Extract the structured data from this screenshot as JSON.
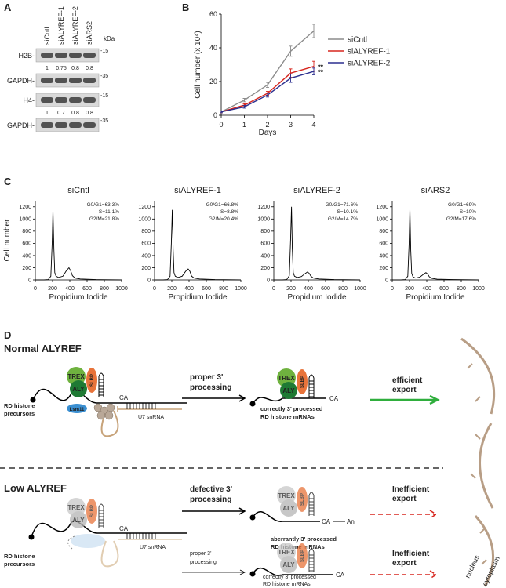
{
  "panel_a": {
    "label": "A",
    "lanes": [
      "siCntl",
      "siALYREF-1",
      "siALYREF-2",
      "siARS2"
    ],
    "kda": "kDa",
    "rows": [
      {
        "name": "H2B-",
        "marker": "-15",
        "quant": [
          1,
          0.75,
          0.8,
          0.8
        ]
      },
      {
        "name": "GAPDH-",
        "marker": "-35"
      },
      {
        "name": "H4-",
        "marker": "-15",
        "quant": [
          1,
          0.7,
          0.8,
          0.8
        ]
      },
      {
        "name": "GAPDH-",
        "marker": "-35"
      }
    ]
  },
  "chart_data": [
    {
      "type": "line",
      "panel": "B",
      "ylabel": "Cell number (x 10⁴)",
      "xlabel": "Days",
      "x": [
        0,
        1,
        2,
        3,
        4
      ],
      "xlim": [
        0,
        4
      ],
      "xticks": [
        0,
        1,
        2,
        3,
        4
      ],
      "ylim": [
        0,
        60
      ],
      "yticks": [
        0,
        20,
        40,
        60
      ],
      "series": [
        {
          "name": "siCntl",
          "color": "#8c8c8c",
          "values": [
            2,
            9,
            18,
            38,
            50
          ],
          "errors": [
            0.5,
            1,
            1.5,
            3,
            4
          ]
        },
        {
          "name": "siALYREF-1",
          "color": "#d7261e",
          "values": [
            2,
            6,
            13,
            25,
            29
          ],
          "errors": [
            0.5,
            0.8,
            1.2,
            2.5,
            3
          ]
        },
        {
          "name": "siALYREF-2",
          "color": "#2b2f8f",
          "values": [
            2,
            5,
            12,
            22,
            26
          ],
          "errors": [
            0.5,
            0.8,
            1.2,
            2.5,
            2
          ]
        }
      ],
      "annotations": [
        "**",
        "**"
      ]
    },
    {
      "type": "line",
      "panel": "C",
      "title": "siCntl",
      "ylabel": "Cell number",
      "xlabel": "Propidium Iodide",
      "color": "#000",
      "xlim": [
        0,
        1000
      ],
      "xticks": [
        0,
        200,
        400,
        600,
        800,
        1000
      ],
      "ylim": [
        0,
        1300
      ],
      "yticks": [
        0,
        200,
        400,
        600,
        800,
        1000,
        1200
      ],
      "x": [
        0,
        100,
        150,
        180,
        195,
        205,
        215,
        225,
        240,
        270,
        320,
        360,
        390,
        410,
        430,
        460,
        520,
        700,
        1000
      ],
      "values": [
        0,
        0,
        5,
        60,
        600,
        1150,
        500,
        120,
        60,
        40,
        60,
        150,
        200,
        150,
        70,
        30,
        15,
        5,
        0
      ],
      "annotations": [
        "G0/G1=63.3%",
        "S=11.1%",
        "G2/M=21.8%"
      ]
    },
    {
      "type": "line",
      "title": "siALYREF-1",
      "xlabel": "Propidium Iodide",
      "color": "#000",
      "xlim": [
        0,
        1000
      ],
      "xticks": [
        0,
        200,
        400,
        600,
        800,
        1000
      ],
      "ylim": [
        0,
        1300
      ],
      "yticks": [
        0,
        200,
        400,
        600,
        800,
        1000,
        1200
      ],
      "x": [
        0,
        100,
        150,
        180,
        195,
        205,
        215,
        225,
        240,
        270,
        320,
        360,
        390,
        410,
        430,
        460,
        520,
        700,
        1000
      ],
      "values": [
        0,
        0,
        5,
        60,
        600,
        1150,
        500,
        120,
        60,
        40,
        60,
        140,
        180,
        140,
        60,
        30,
        15,
        5,
        0
      ],
      "annotations": [
        "G0/G1=66.8%",
        "S=8.8%",
        "G2/M=20.4%"
      ]
    },
    {
      "type": "line",
      "title": "siALYREF-2",
      "xlabel": "Propidium Iodide",
      "color": "#000",
      "xlim": [
        0,
        1000
      ],
      "xticks": [
        0,
        200,
        400,
        600,
        800,
        1000
      ],
      "ylim": [
        0,
        1300
      ],
      "yticks": [
        0,
        200,
        400,
        600,
        800,
        1000,
        1200
      ],
      "x": [
        0,
        100,
        150,
        180,
        195,
        205,
        215,
        225,
        240,
        270,
        320,
        360,
        390,
        410,
        430,
        460,
        520,
        700,
        1000
      ],
      "values": [
        0,
        0,
        5,
        70,
        650,
        1200,
        520,
        120,
        60,
        40,
        55,
        100,
        130,
        110,
        60,
        30,
        15,
        5,
        0
      ],
      "annotations": [
        "G0/G1=71.6%",
        "S=10.1%",
        "G2/M=14.7%"
      ]
    },
    {
      "type": "line",
      "title": "siARS2",
      "xlabel": "Propidium Iodide",
      "color": "#000",
      "xlim": [
        0,
        1000
      ],
      "xticks": [
        0,
        200,
        400,
        600,
        800,
        1000
      ],
      "ylim": [
        0,
        1300
      ],
      "yticks": [
        0,
        200,
        400,
        600,
        800,
        1000,
        1200
      ],
      "x": [
        0,
        100,
        150,
        180,
        195,
        205,
        215,
        225,
        240,
        270,
        320,
        360,
        390,
        410,
        430,
        460,
        520,
        700,
        1000
      ],
      "values": [
        0,
        0,
        5,
        60,
        600,
        1180,
        480,
        110,
        50,
        30,
        45,
        90,
        120,
        95,
        50,
        25,
        12,
        5,
        0
      ],
      "annotations": [
        "G0/G1=69%",
        "S=10%",
        "G2/M=17.6%"
      ]
    }
  ],
  "panel_d": {
    "label": "D",
    "complex": {
      "trex": "TREX",
      "aly": "ALY",
      "slbp": "SLBP",
      "lsm11": "Lsm11",
      "ca": "CA",
      "u7": "U7 snRNA",
      "tail": "An"
    },
    "normal": {
      "title": "Normal ALYREF",
      "precursors": [
        "RD histone",
        "precursors"
      ],
      "step": [
        "proper 3'",
        "processing"
      ],
      "product": [
        "correctly 3' processed",
        "RD histone mRNAs"
      ],
      "export": [
        "efficient",
        "export"
      ]
    },
    "low": {
      "title": "Low ALYREF",
      "precursors": [
        "RD histone",
        "precursors"
      ],
      "defective": {
        "step": [
          "defective 3'",
          "processing"
        ],
        "product": [
          "aberrantly 3' processed",
          "RD histone mRNAs"
        ],
        "export": [
          "Inefficient",
          "export"
        ]
      },
      "proper": {
        "step": [
          "proper 3'",
          "processing"
        ],
        "product": [
          "correctly 3' processed",
          "RD histone mRNAs"
        ],
        "export": [
          "Inefficient",
          "export"
        ]
      }
    },
    "compartments": {
      "nucleus": "nucleus",
      "cytoplasm": "cytoplasm"
    }
  }
}
